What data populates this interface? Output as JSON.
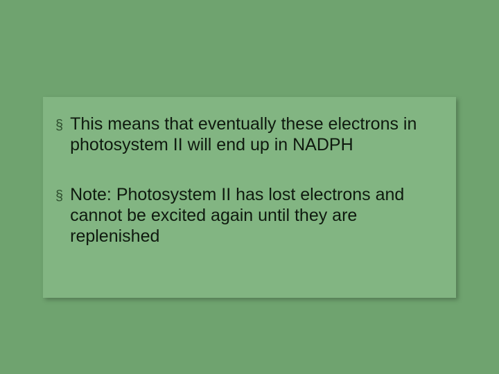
{
  "slide": {
    "background_color": "#6fa36f",
    "box": {
      "background_color": "#82b582",
      "shadow": "3px 3px 6px rgba(0,0,0,0.25)"
    },
    "bullet_marker": "§",
    "bullet_marker_color": "#2f4f2f",
    "text_color": "#0f1a0f",
    "font_size_pt": 19,
    "bullets": [
      {
        "text": "This means that eventually these electrons in photosystem II will end up in NADPH"
      },
      {
        "text": "Note: Photosystem II has lost electrons and cannot be excited again until they are replenished"
      }
    ]
  }
}
